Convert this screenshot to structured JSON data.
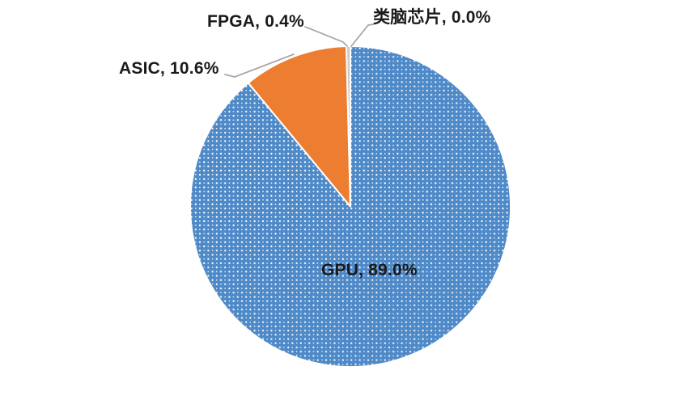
{
  "colors": {
    "background": "#FFFFFF",
    "leader_line": "#A6A6A6",
    "label_text": "#1A1A1A",
    "slice_border": "#FFFFFF",
    "pattern_dot": "#FFFFFF"
  },
  "chart_data": {
    "type": "pie",
    "title": "",
    "legend": "none",
    "start_angle_deg": 0,
    "direction": "clockwise",
    "units": "%",
    "categories": [
      "GPU",
      "ASIC",
      "FPGA",
      "类脑芯片"
    ],
    "values": [
      89.0,
      10.6,
      0.4,
      0.0
    ],
    "slices": [
      {
        "id": "gpu",
        "label": "GPU",
        "value": 89.0,
        "display": "GPU, 89.0%",
        "color": "#4E89C8",
        "fill_pattern": "white-dots",
        "label_placement": "inside"
      },
      {
        "id": "asic",
        "label": "ASIC",
        "value": 10.6,
        "display": "ASIC, 10.6%",
        "color": "#ED7D31",
        "fill_pattern": "solid",
        "label_placement": "outside-left"
      },
      {
        "id": "fpga",
        "label": "FPGA",
        "value": 0.4,
        "display": "FPGA, 0.4%",
        "color": "#C9C9C9",
        "fill_pattern": "solid",
        "label_placement": "outside-top-left"
      },
      {
        "id": "brain-chip",
        "label": "类脑芯片",
        "value": 0.0,
        "display": "类脑芯片, 0.0%",
        "color": "#FFC000",
        "fill_pattern": "solid",
        "label_placement": "outside-top-right"
      }
    ]
  }
}
